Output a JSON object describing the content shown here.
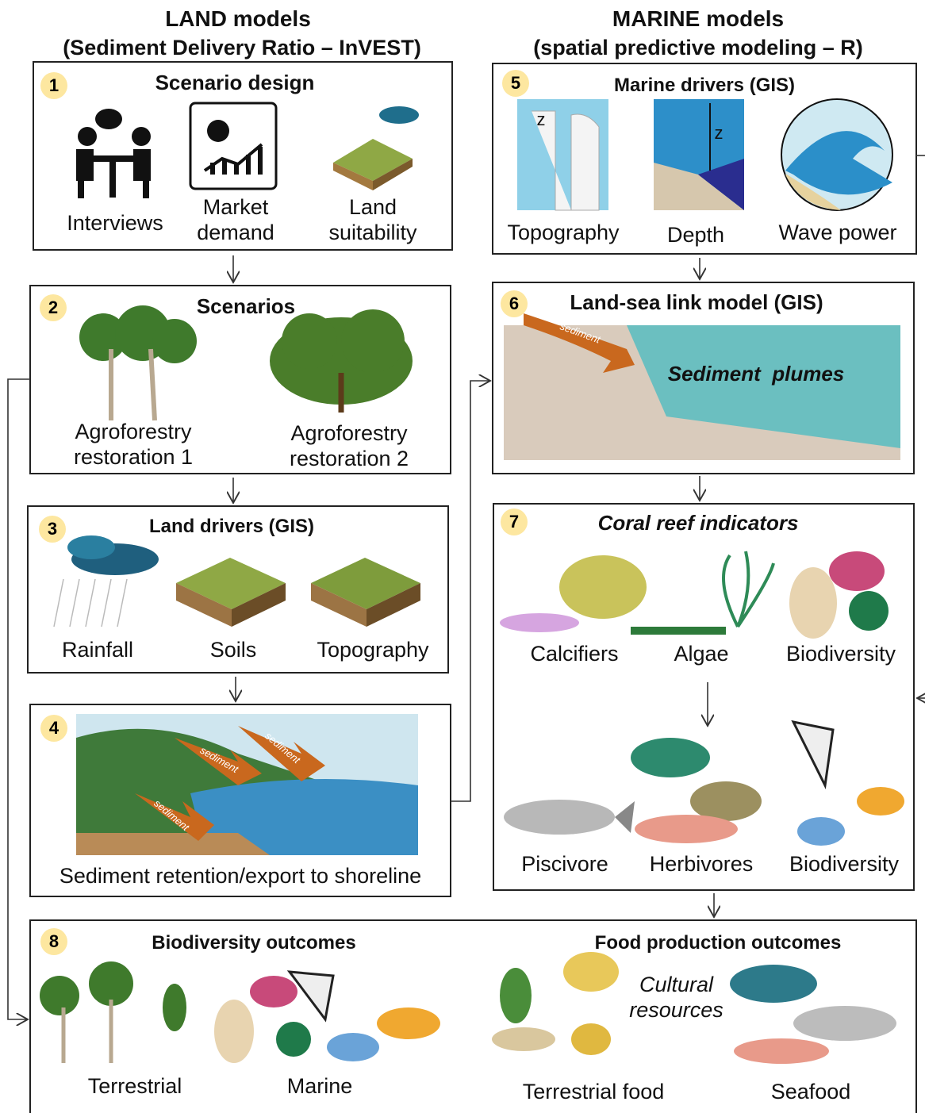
{
  "headers": [
    {
      "title": "LAND models",
      "subtitle": "(Sediment Delivery Ratio – InVEST)"
    },
    {
      "title": "MARINE models",
      "subtitle": "(spatial predictive modeling – R)"
    }
  ],
  "boxes": [
    {
      "number": "1",
      "title": "Scenario design",
      "labels": [
        "Interviews",
        "Market demand",
        "Land suitability"
      ]
    },
    {
      "number": "2",
      "title": "Scenarios",
      "labels": [
        "Agroforestry restoration 1",
        "Agroforestry restoration 2"
      ]
    },
    {
      "number": "3",
      "title": "Land drivers (GIS)",
      "labels": [
        "Rainfall",
        "Soils",
        "Topography"
      ]
    },
    {
      "number": "4",
      "annotations": [
        "sediment",
        "sediment",
        "sediment"
      ],
      "caption": "Sediment retention/export to shoreline"
    },
    {
      "number": "5",
      "title": "Marine drivers (GIS)",
      "labels": [
        "Topography",
        "Depth",
        "Wave power"
      ],
      "annotations": [
        "z",
        "z"
      ]
    },
    {
      "number": "6",
      "title": "Land-sea link model (GIS)",
      "annotations": [
        "sediment",
        "Sediment  plumes"
      ]
    },
    {
      "number": "7",
      "title": "Coral reef indicators",
      "labels": [
        "Calcifiers",
        "Algae",
        "Biodiversity",
        "Piscivore",
        "Herbivores",
        "Biodiversity"
      ]
    },
    {
      "number": "8",
      "titles": [
        "Biodiversity outcomes",
        "Food production outcomes"
      ],
      "labels": [
        "Terrestrial",
        "Marine",
        "Terrestrial food",
        "Seafood"
      ],
      "annotations": [
        "Cultural resources"
      ]
    }
  ]
}
